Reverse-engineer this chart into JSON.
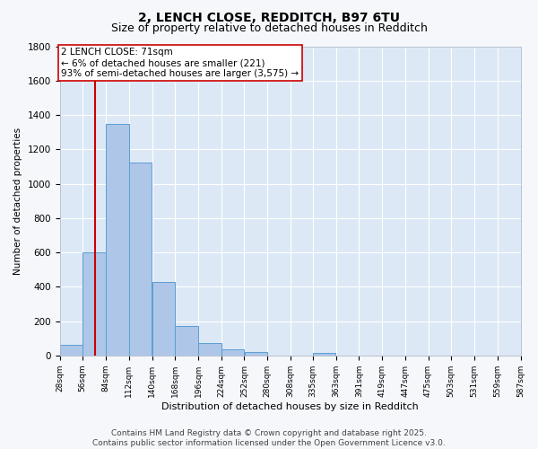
{
  "title1": "2, LENCH CLOSE, REDDITCH, B97 6TU",
  "title2": "Size of property relative to detached houses in Redditch",
  "xlabel": "Distribution of detached houses by size in Redditch",
  "ylabel": "Number of detached properties",
  "bin_edges": [
    28,
    56,
    84,
    112,
    140,
    168,
    196,
    224,
    252,
    280,
    308,
    335,
    363,
    391,
    419,
    447,
    475,
    503,
    531,
    559,
    587
  ],
  "bin_labels": [
    "28sqm",
    "56sqm",
    "84sqm",
    "112sqm",
    "140sqm",
    "168sqm",
    "196sqm",
    "224sqm",
    "252sqm",
    "280sqm",
    "308sqm",
    "335sqm",
    "363sqm",
    "391sqm",
    "419sqm",
    "447sqm",
    "475sqm",
    "503sqm",
    "531sqm",
    "559sqm",
    "587sqm"
  ],
  "counts": [
    60,
    600,
    1350,
    1125,
    430,
    170,
    70,
    35,
    20,
    0,
    0,
    15,
    0,
    0,
    0,
    0,
    0,
    0,
    0,
    0
  ],
  "bar_color": "#aec6e8",
  "bar_edge_color": "#5a9fd4",
  "vline_x": 71,
  "vline_color": "#cc0000",
  "annotation_line1": "2 LENCH CLOSE: 71sqm",
  "annotation_line2": "← 6% of detached houses are smaller (221)",
  "annotation_line3": "93% of semi-detached houses are larger (3,575) →",
  "annotation_box_edge_color": "#cc0000",
  "annotation_box_face_color": "#ffffff",
  "ylim": [
    0,
    1800
  ],
  "yticks": [
    0,
    200,
    400,
    600,
    800,
    1000,
    1200,
    1400,
    1600,
    1800
  ],
  "background_color": "#dce8f5",
  "grid_color": "#ffffff",
  "footer_text": "Contains HM Land Registry data © Crown copyright and database right 2025.\nContains public sector information licensed under the Open Government Licence v3.0.",
  "title1_fontsize": 10,
  "title2_fontsize": 9,
  "annotation_fontsize": 7.5,
  "footer_fontsize": 6.5,
  "xlabel_fontsize": 8,
  "ylabel_fontsize": 7.5
}
